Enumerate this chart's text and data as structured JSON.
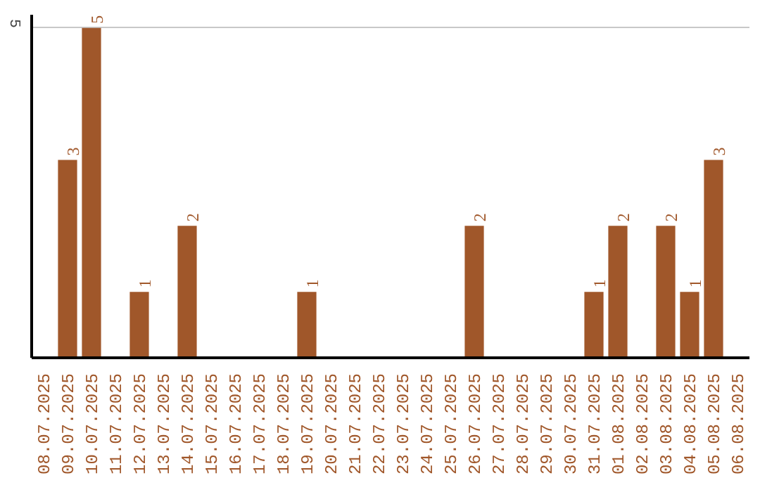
{
  "chart_data": {
    "type": "bar",
    "categories": [
      "08.07.2025",
      "09.07.2025",
      "10.07.2025",
      "11.07.2025",
      "12.07.2025",
      "13.07.2025",
      "14.07.2025",
      "15.07.2025",
      "16.07.2025",
      "17.07.2025",
      "18.07.2025",
      "19.07.2025",
      "20.07.2025",
      "21.07.2025",
      "22.07.2025",
      "23.07.2025",
      "24.07.2025",
      "25.07.2025",
      "26.07.2025",
      "27.07.2025",
      "28.07.2025",
      "29.07.2025",
      "30.07.2025",
      "31.07.2025",
      "01.08.2025",
      "02.08.2025",
      "03.08.2025",
      "04.08.2025",
      "05.08.2025",
      "06.08.2025"
    ],
    "values": [
      null,
      3,
      5,
      null,
      1,
      null,
      2,
      null,
      null,
      null,
      null,
      1,
      null,
      null,
      null,
      null,
      null,
      null,
      2,
      null,
      null,
      null,
      null,
      1,
      2,
      null,
      2,
      1,
      3,
      null
    ],
    "color": "#a0572a",
    "ylim": [
      0,
      5.2
    ],
    "yticks": [
      5
    ],
    "grid": "y",
    "data_labels": true
  }
}
